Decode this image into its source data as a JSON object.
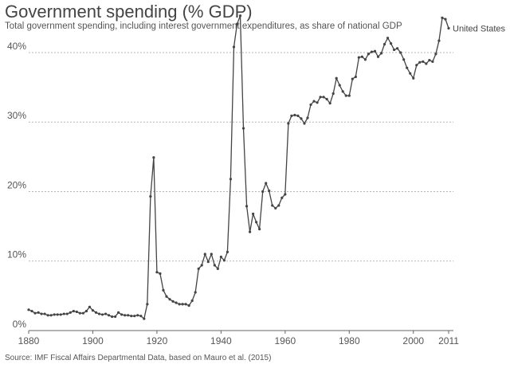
{
  "chart_data": {
    "type": "line",
    "title": "Government spending (% GDP)",
    "subtitle": "Total government spending, including interest government expenditures, as share of national GDP",
    "source": "Source: IMF Fiscal Affairs Departmental Data, based on Mauro et al. (2015)",
    "xlabel": "",
    "ylabel": "",
    "xlim": [
      1880,
      2011
    ],
    "ylim": [
      0,
      45
    ],
    "x_ticks": [
      {
        "value": 1880,
        "label": "1880"
      },
      {
        "value": 1900,
        "label": "1900"
      },
      {
        "value": 1920,
        "label": "1920"
      },
      {
        "value": 1940,
        "label": "1940"
      },
      {
        "value": 1960,
        "label": "1960"
      },
      {
        "value": 1980,
        "label": "1980"
      },
      {
        "value": 2000,
        "label": "2000"
      },
      {
        "value": 2011,
        "label": "2011"
      }
    ],
    "y_ticks": [
      {
        "value": 0,
        "label": "0%"
      },
      {
        "value": 10,
        "label": "10%"
      },
      {
        "value": 20,
        "label": "20%"
      },
      {
        "value": 30,
        "label": "30%"
      },
      {
        "value": 40,
        "label": "40%"
      }
    ],
    "grid": true,
    "series": [
      {
        "name": "United States",
        "color": "#444444",
        "points": [
          [
            1880,
            3.0
          ],
          [
            1881,
            2.8
          ],
          [
            1882,
            2.5
          ],
          [
            1883,
            2.6
          ],
          [
            1884,
            2.4
          ],
          [
            1885,
            2.4
          ],
          [
            1886,
            2.2
          ],
          [
            1887,
            2.2
          ],
          [
            1888,
            2.3
          ],
          [
            1889,
            2.3
          ],
          [
            1890,
            2.3
          ],
          [
            1891,
            2.4
          ],
          [
            1892,
            2.4
          ],
          [
            1893,
            2.6
          ],
          [
            1894,
            2.8
          ],
          [
            1895,
            2.7
          ],
          [
            1896,
            2.5
          ],
          [
            1897,
            2.5
          ],
          [
            1898,
            2.8
          ],
          [
            1899,
            3.4
          ],
          [
            1900,
            2.9
          ],
          [
            1901,
            2.6
          ],
          [
            1902,
            2.4
          ],
          [
            1903,
            2.3
          ],
          [
            1904,
            2.4
          ],
          [
            1905,
            2.2
          ],
          [
            1906,
            2.0
          ],
          [
            1907,
            2.0
          ],
          [
            1908,
            2.6
          ],
          [
            1909,
            2.3
          ],
          [
            1910,
            2.2
          ],
          [
            1911,
            2.2
          ],
          [
            1912,
            2.1
          ],
          [
            1913,
            2.1
          ],
          [
            1914,
            2.2
          ],
          [
            1915,
            2.1
          ],
          [
            1916,
            1.7
          ],
          [
            1917,
            3.8
          ],
          [
            1918,
            19.3
          ],
          [
            1919,
            24.9
          ],
          [
            1920,
            8.4
          ],
          [
            1921,
            8.2
          ],
          [
            1922,
            5.8
          ],
          [
            1923,
            4.9
          ],
          [
            1924,
            4.5
          ],
          [
            1925,
            4.2
          ],
          [
            1926,
            4.0
          ],
          [
            1927,
            3.8
          ],
          [
            1928,
            3.8
          ],
          [
            1929,
            3.8
          ],
          [
            1930,
            3.6
          ],
          [
            1931,
            4.3
          ],
          [
            1932,
            5.5
          ],
          [
            1933,
            8.9
          ],
          [
            1934,
            9.4
          ],
          [
            1935,
            11.0
          ],
          [
            1936,
            9.9
          ],
          [
            1937,
            11.0
          ],
          [
            1938,
            9.4
          ],
          [
            1939,
            8.9
          ],
          [
            1940,
            10.6
          ],
          [
            1941,
            10.1
          ],
          [
            1942,
            11.3
          ],
          [
            1943,
            21.8
          ],
          [
            1944,
            40.8
          ],
          [
            1945,
            44.1
          ],
          [
            1946,
            45.3
          ],
          [
            1947,
            29.1
          ],
          [
            1948,
            17.9
          ],
          [
            1949,
            14.2
          ],
          [
            1950,
            16.8
          ],
          [
            1951,
            15.6
          ],
          [
            1952,
            14.6
          ],
          [
            1953,
            20.0
          ],
          [
            1954,
            21.2
          ],
          [
            1955,
            20.1
          ],
          [
            1956,
            18.0
          ],
          [
            1957,
            17.6
          ],
          [
            1958,
            18.0
          ],
          [
            1959,
            19.1
          ],
          [
            1960,
            19.6
          ],
          [
            1961,
            29.8
          ],
          [
            1962,
            30.9
          ],
          [
            1963,
            31.0
          ],
          [
            1964,
            30.9
          ],
          [
            1965,
            30.5
          ],
          [
            1966,
            29.8
          ],
          [
            1967,
            30.6
          ],
          [
            1968,
            32.5
          ],
          [
            1969,
            33.0
          ],
          [
            1970,
            32.8
          ],
          [
            1971,
            33.6
          ],
          [
            1972,
            33.6
          ],
          [
            1973,
            33.3
          ],
          [
            1974,
            32.7
          ],
          [
            1975,
            34.1
          ],
          [
            1976,
            36.3
          ],
          [
            1977,
            35.3
          ],
          [
            1978,
            34.4
          ],
          [
            1979,
            33.8
          ],
          [
            1980,
            33.8
          ],
          [
            1981,
            36.2
          ],
          [
            1982,
            36.5
          ],
          [
            1983,
            39.3
          ],
          [
            1984,
            39.4
          ],
          [
            1985,
            39.0
          ],
          [
            1986,
            39.8
          ],
          [
            1987,
            40.1
          ],
          [
            1988,
            40.2
          ],
          [
            1989,
            39.4
          ],
          [
            1990,
            39.9
          ],
          [
            1991,
            41.2
          ],
          [
            1992,
            42.1
          ],
          [
            1993,
            41.3
          ],
          [
            1994,
            40.4
          ],
          [
            1995,
            40.6
          ],
          [
            1996,
            40.0
          ],
          [
            1997,
            39.0
          ],
          [
            1998,
            37.8
          ],
          [
            1999,
            37.0
          ],
          [
            2000,
            36.3
          ],
          [
            2001,
            38.2
          ],
          [
            2002,
            38.6
          ],
          [
            2003,
            38.7
          ],
          [
            2004,
            38.4
          ],
          [
            2005,
            38.9
          ],
          [
            2006,
            38.7
          ],
          [
            2007,
            39.8
          ],
          [
            2008,
            41.7
          ],
          [
            2009,
            45.0
          ],
          [
            2010,
            44.8
          ],
          [
            2011,
            43.5
          ]
        ]
      }
    ]
  }
}
